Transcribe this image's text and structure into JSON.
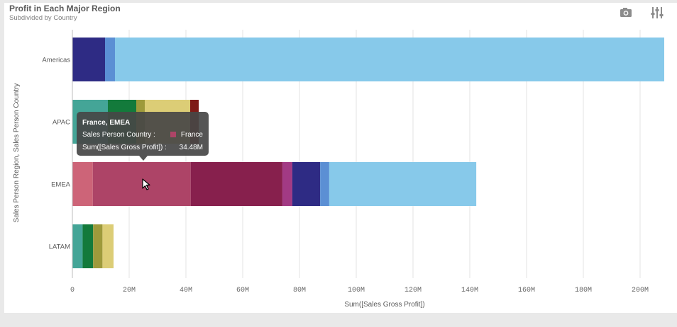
{
  "header": {
    "title": "Profit in Each Major Region",
    "subtitle": "Subdivided by Country"
  },
  "toolbar": {
    "snapshot_icon": "camera-icon",
    "settings_icon": "sliders-icon"
  },
  "tooltip": {
    "title": "France, EMEA",
    "label_country": "Sales Person Country :",
    "value_country": "France",
    "label_measure": "Sum([Sales Gross Profit]) :",
    "value_measure": "34.48M",
    "swatch_color": "#ad4467"
  },
  "chart_data": {
    "type": "bar",
    "orientation": "horizontal",
    "stacked": true,
    "title": "Profit in Each Major Region",
    "subtitle": "Subdivided by Country",
    "xlabel": "Sum([Sales Gross Profit])",
    "ylabel": "Sales Person Region, Sales Person Country",
    "xlim": [
      0,
      210000000
    ],
    "x_ticks": [
      0,
      20000000,
      40000000,
      60000000,
      80000000,
      100000000,
      120000000,
      140000000,
      160000000,
      180000000,
      200000000
    ],
    "x_tick_labels": [
      "0",
      "20M",
      "40M",
      "60M",
      "80M",
      "100M",
      "120M",
      "140M",
      "160M",
      "180M",
      "200M"
    ],
    "grid": "vertical",
    "categories": [
      "Americas",
      "APAC",
      "EMEA",
      "LATAM"
    ],
    "stacks": [
      {
        "category": "Americas",
        "segments": [
          {
            "value": 11500000,
            "color": "#2e2b84"
          },
          {
            "value": 3500000,
            "color": "#5b8fd4"
          },
          {
            "value": 193500000,
            "color": "#87c9ea"
          }
        ]
      },
      {
        "category": "APAC",
        "segments": [
          {
            "value": 12500000,
            "color": "#44a597"
          },
          {
            "value": 10000000,
            "color": "#137a3b"
          },
          {
            "value": 3000000,
            "color": "#9e9a3b"
          },
          {
            "value": 16000000,
            "color": "#dccd76"
          },
          {
            "value": 3000000,
            "color": "#7e1a16"
          }
        ]
      },
      {
        "category": "EMEA",
        "segments": [
          {
            "value": 7200000,
            "color": "#cd6478"
          },
          {
            "value": 34480000,
            "color": "#ad4467"
          },
          {
            "value": 32300000,
            "color": "#87204d"
          },
          {
            "value": 3500000,
            "color": "#a23a84"
          },
          {
            "value": 9800000,
            "color": "#2e2b84"
          },
          {
            "value": 3200000,
            "color": "#5b8fd4"
          },
          {
            "value": 51800000,
            "color": "#87c9ea"
          }
        ]
      },
      {
        "category": "LATAM",
        "segments": [
          {
            "value": 3600000,
            "color": "#44a597"
          },
          {
            "value": 3700000,
            "color": "#137a3b"
          },
          {
            "value": 3300000,
            "color": "#9e9a3b"
          },
          {
            "value": 3900000,
            "color": "#dccd76"
          }
        ]
      }
    ]
  }
}
